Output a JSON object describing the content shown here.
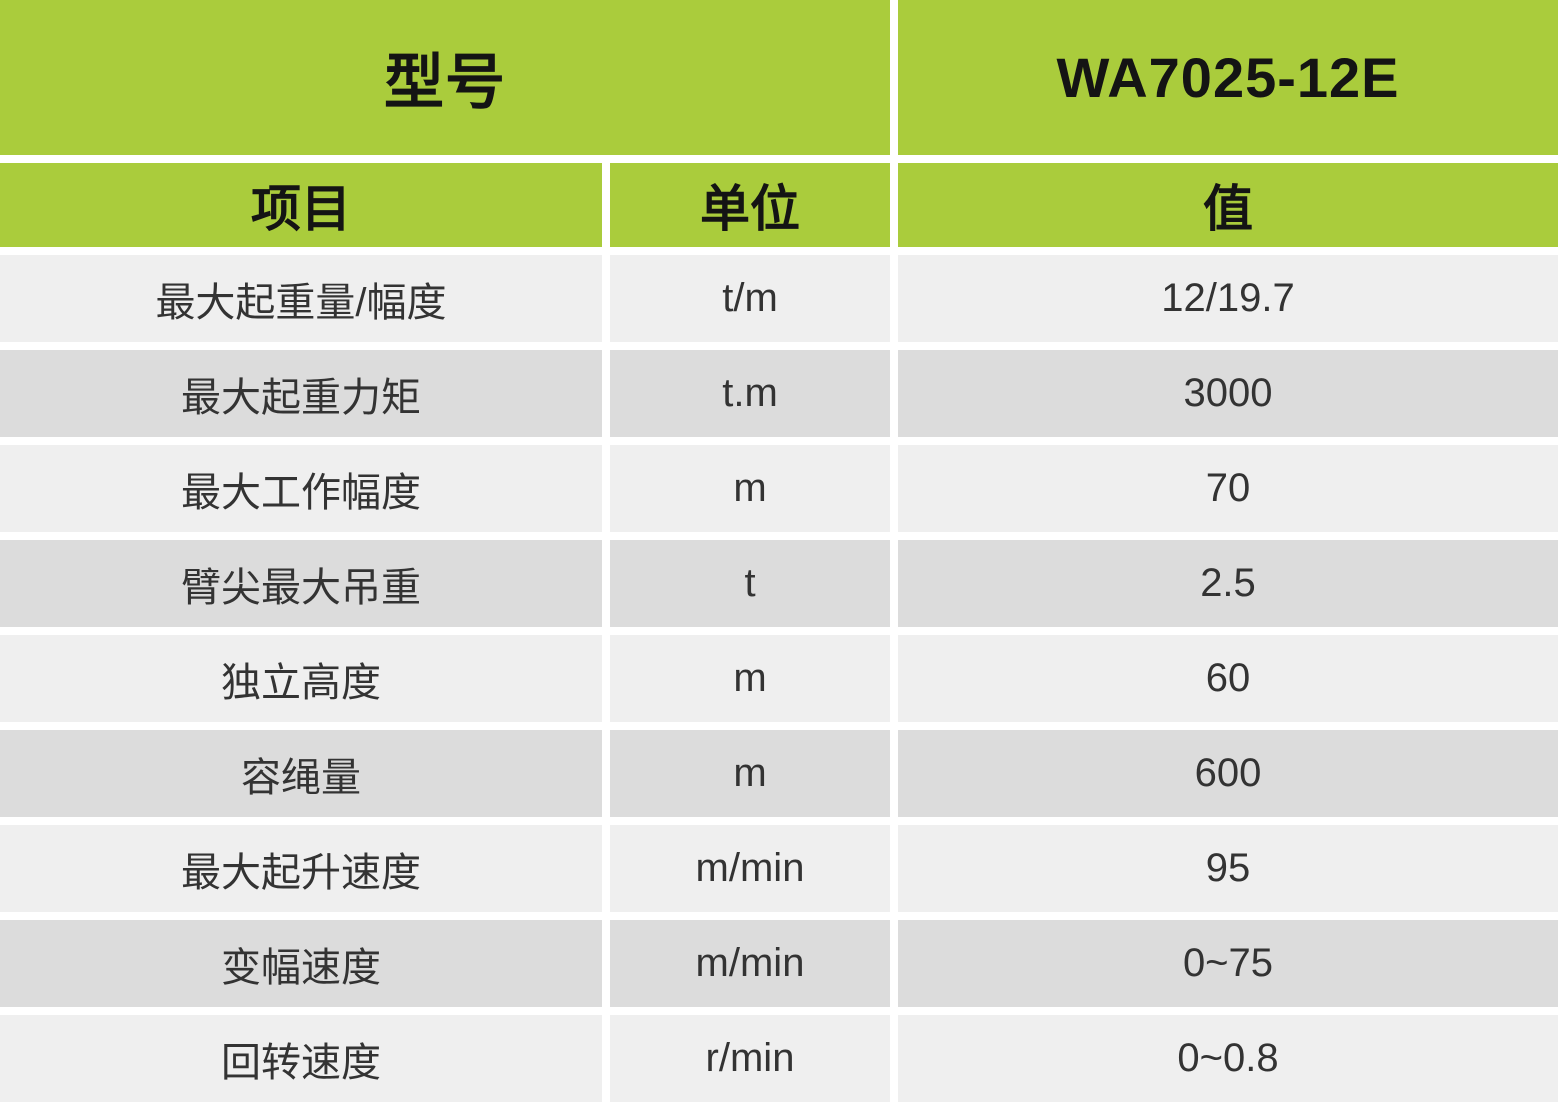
{
  "colors": {
    "header_green": "#aacc3c",
    "row_light": "#efefef",
    "row_dark": "#dcdcdc",
    "header_text": "#141414",
    "body_text": "#333333"
  },
  "header": {
    "model_label": "型号",
    "model_value": "WA7025-12E",
    "columns": [
      "项目",
      "单位",
      "值"
    ]
  },
  "rows": [
    {
      "item": "最大起重量/幅度",
      "unit": "t/m",
      "value": "12/19.7"
    },
    {
      "item": "最大起重力矩",
      "unit": "t.m",
      "value": "3000"
    },
    {
      "item": "最大工作幅度",
      "unit": "m",
      "value": "70"
    },
    {
      "item": "臂尖最大吊重",
      "unit": "t",
      "value": "2.5"
    },
    {
      "item": "独立高度",
      "unit": "m",
      "value": "60"
    },
    {
      "item": "容绳量",
      "unit": "m",
      "value": "600"
    },
    {
      "item": "最大起升速度",
      "unit": "m/min",
      "value": "95"
    },
    {
      "item": "变幅速度",
      "unit": "m/min",
      "value": "0~75"
    },
    {
      "item": "回转速度",
      "unit": "r/min",
      "value": "0~0.8"
    }
  ]
}
